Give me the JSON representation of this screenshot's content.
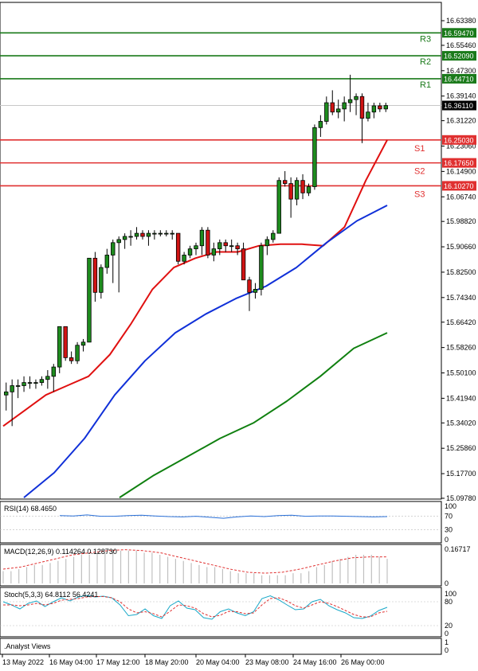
{
  "chart_data": {
    "type": "candlestick",
    "symbol_info": "",
    "x_tick_labels": [
      "13 May 2022",
      "16 May 04:00",
      "17 May 12:00",
      "18 May 20:00",
      "20 May 04:00",
      "23 May 08:00",
      "24 May 16:00",
      "26 May 00:00"
    ],
    "price_ticks": [
      "16.63380",
      "16.55460",
      "16.47300",
      "16.39140",
      "16.31220",
      "16.23060",
      "16.14900",
      "16.06740",
      "15.98820",
      "15.90660",
      "15.82500",
      "15.74340",
      "15.66420",
      "15.58260",
      "15.50100",
      "15.41940",
      "15.34020",
      "15.25860",
      "15.17700",
      "15.09780"
    ],
    "y_range": [
      15.0978,
      16.6338
    ],
    "current_price": "16.36110",
    "levels": [
      {
        "name": "R3",
        "value_label": "16.59470",
        "value": 16.5947,
        "color": "#1a7a1a"
      },
      {
        "name": "R2",
        "value_label": "16.52090",
        "value": 16.5209,
        "color": "#1a7a1a"
      },
      {
        "name": "R1",
        "value_label": "16.44710",
        "value": 16.4471,
        "color": "#1a7a1a"
      },
      {
        "name": "S1",
        "value_label": "16.25030",
        "value": 16.2503,
        "color": "#e03030"
      },
      {
        "name": "S2",
        "value_label": "16.17650",
        "value": 16.1765,
        "color": "#e03030"
      },
      {
        "name": "S3",
        "value_label": "16.10270",
        "value": 16.1027,
        "color": "#e03030"
      }
    ],
    "candles": [
      {
        "o": 15.43,
        "h": 15.47,
        "l": 15.38,
        "c": 15.44
      },
      {
        "o": 15.44,
        "h": 15.48,
        "l": 15.33,
        "c": 15.46
      },
      {
        "o": 15.46,
        "h": 15.48,
        "l": 15.42,
        "c": 15.46
      },
      {
        "o": 15.46,
        "h": 15.49,
        "l": 15.44,
        "c": 15.47
      },
      {
        "o": 15.47,
        "h": 15.49,
        "l": 15.45,
        "c": 15.47
      },
      {
        "o": 15.47,
        "h": 15.48,
        "l": 15.45,
        "c": 15.47
      },
      {
        "o": 15.47,
        "h": 15.49,
        "l": 15.46,
        "c": 15.48
      },
      {
        "o": 15.48,
        "h": 15.51,
        "l": 15.45,
        "c": 15.49
      },
      {
        "o": 15.49,
        "h": 15.53,
        "l": 15.44,
        "c": 15.52
      },
      {
        "o": 15.52,
        "h": 15.65,
        "l": 15.5,
        "c": 15.65
      },
      {
        "o": 15.65,
        "h": 15.65,
        "l": 15.54,
        "c": 15.55
      },
      {
        "o": 15.55,
        "h": 15.57,
        "l": 15.53,
        "c": 15.54
      },
      {
        "o": 15.54,
        "h": 15.6,
        "l": 15.53,
        "c": 15.59
      },
      {
        "o": 15.59,
        "h": 15.61,
        "l": 15.57,
        "c": 15.6
      },
      {
        "o": 15.6,
        "h": 15.87,
        "l": 15.6,
        "c": 15.87
      },
      {
        "o": 15.87,
        "h": 15.89,
        "l": 15.73,
        "c": 15.76
      },
      {
        "o": 15.76,
        "h": 15.85,
        "l": 15.74,
        "c": 15.84
      },
      {
        "o": 15.84,
        "h": 15.9,
        "l": 15.82,
        "c": 15.88
      },
      {
        "o": 15.88,
        "h": 15.93,
        "l": 15.79,
        "c": 15.92
      },
      {
        "o": 15.92,
        "h": 15.94,
        "l": 15.76,
        "c": 15.93
      },
      {
        "o": 15.93,
        "h": 15.95,
        "l": 15.9,
        "c": 15.94
      },
      {
        "o": 15.94,
        "h": 15.96,
        "l": 15.91,
        "c": 15.94
      },
      {
        "o": 15.94,
        "h": 15.97,
        "l": 15.93,
        "c": 15.95
      },
      {
        "o": 15.95,
        "h": 15.96,
        "l": 15.93,
        "c": 15.94
      },
      {
        "o": 15.94,
        "h": 15.96,
        "l": 15.91,
        "c": 15.95
      },
      {
        "o": 15.95,
        "h": 15.96,
        "l": 15.93,
        "c": 15.95
      },
      {
        "o": 15.95,
        "h": 15.96,
        "l": 15.94,
        "c": 15.95
      },
      {
        "o": 15.95,
        "h": 15.96,
        "l": 15.94,
        "c": 15.95
      },
      {
        "o": 15.95,
        "h": 15.96,
        "l": 15.93,
        "c": 15.95
      },
      {
        "o": 15.95,
        "h": 15.95,
        "l": 15.85,
        "c": 15.86
      },
      {
        "o": 15.86,
        "h": 15.89,
        "l": 15.85,
        "c": 15.88
      },
      {
        "o": 15.88,
        "h": 15.91,
        "l": 15.87,
        "c": 15.9
      },
      {
        "o": 15.9,
        "h": 15.92,
        "l": 15.88,
        "c": 15.91
      },
      {
        "o": 15.91,
        "h": 15.97,
        "l": 15.88,
        "c": 15.96
      },
      {
        "o": 15.96,
        "h": 15.97,
        "l": 15.87,
        "c": 15.88
      },
      {
        "o": 15.88,
        "h": 15.92,
        "l": 15.86,
        "c": 15.9
      },
      {
        "o": 15.9,
        "h": 15.93,
        "l": 15.88,
        "c": 15.92
      },
      {
        "o": 15.92,
        "h": 15.93,
        "l": 15.89,
        "c": 15.91
      },
      {
        "o": 15.91,
        "h": 15.93,
        "l": 15.89,
        "c": 15.91
      },
      {
        "o": 15.91,
        "h": 15.92,
        "l": 15.88,
        "c": 15.9
      },
      {
        "o": 15.9,
        "h": 15.92,
        "l": 15.8,
        "c": 15.8
      },
      {
        "o": 15.8,
        "h": 15.81,
        "l": 15.7,
        "c": 15.76
      },
      {
        "o": 15.76,
        "h": 15.79,
        "l": 15.74,
        "c": 15.77
      },
      {
        "o": 15.77,
        "h": 15.92,
        "l": 15.75,
        "c": 15.91
      },
      {
        "o": 15.91,
        "h": 15.94,
        "l": 15.88,
        "c": 15.93
      },
      {
        "o": 15.93,
        "h": 15.96,
        "l": 15.92,
        "c": 15.95
      },
      {
        "o": 15.95,
        "h": 16.13,
        "l": 15.95,
        "c": 16.12
      },
      {
        "o": 16.12,
        "h": 16.15,
        "l": 16.1,
        "c": 16.11
      },
      {
        "o": 16.11,
        "h": 16.13,
        "l": 16.0,
        "c": 16.06
      },
      {
        "o": 16.06,
        "h": 16.13,
        "l": 16.04,
        "c": 16.12
      },
      {
        "o": 16.12,
        "h": 16.14,
        "l": 16.06,
        "c": 16.08
      },
      {
        "o": 16.08,
        "h": 16.11,
        "l": 16.07,
        "c": 16.1
      },
      {
        "o": 16.1,
        "h": 16.3,
        "l": 16.09,
        "c": 16.29
      },
      {
        "o": 16.29,
        "h": 16.33,
        "l": 16.26,
        "c": 16.31
      },
      {
        "o": 16.31,
        "h": 16.39,
        "l": 16.3,
        "c": 16.37
      },
      {
        "o": 16.37,
        "h": 16.41,
        "l": 16.33,
        "c": 16.34
      },
      {
        "o": 16.34,
        "h": 16.38,
        "l": 16.32,
        "c": 16.35
      },
      {
        "o": 16.35,
        "h": 16.39,
        "l": 16.31,
        "c": 16.37
      },
      {
        "o": 16.37,
        "h": 16.46,
        "l": 16.34,
        "c": 16.38
      },
      {
        "o": 16.38,
        "h": 16.4,
        "l": 16.33,
        "c": 16.39
      },
      {
        "o": 16.39,
        "h": 16.4,
        "l": 16.24,
        "c": 16.32
      },
      {
        "o": 16.32,
        "h": 16.37,
        "l": 16.31,
        "c": 16.34
      },
      {
        "o": 16.34,
        "h": 16.37,
        "l": 16.32,
        "c": 16.36
      },
      {
        "o": 16.36,
        "h": 16.37,
        "l": 16.34,
        "c": 16.35
      },
      {
        "o": 16.35,
        "h": 16.37,
        "l": 16.34,
        "c": 16.361
      }
    ],
    "moving_averages": [
      {
        "color": "#e01010",
        "points": [
          15.33,
          15.38,
          15.43,
          15.46,
          15.49,
          15.56,
          15.66,
          15.77,
          15.84,
          15.87,
          15.89,
          15.89,
          15.91,
          15.915,
          15.915,
          15.91,
          15.97,
          16.12,
          16.25
        ]
      },
      {
        "color": "#1030d8",
        "points": [
          15.1,
          15.18,
          15.29,
          15.43,
          15.54,
          15.63,
          15.69,
          15.74,
          15.78,
          15.84,
          15.92,
          15.99,
          16.04
        ]
      },
      {
        "color": "#108010",
        "points": [
          15.1,
          15.17,
          15.23,
          15.29,
          15.34,
          15.41,
          15.49,
          15.58,
          15.63
        ]
      }
    ],
    "rsi": {
      "label": "RSI(14) 68.4650",
      "ticks": [
        "100",
        "70",
        "30",
        "0"
      ],
      "values": [
        72,
        71,
        74,
        70,
        70,
        72,
        73,
        71,
        69,
        68,
        70,
        67,
        64,
        68,
        71,
        69,
        72,
        73,
        70,
        71,
        71,
        70,
        69,
        68,
        69
      ],
      "color": "#2a70d8"
    },
    "macd": {
      "label": "MACD(12,26,9) 0.114264 0.128730",
      "ticks": [
        "0.16717",
        "0"
      ],
      "histogram": [
        0.06,
        0.06,
        0.07,
        0.08,
        0.09,
        0.09,
        0.1,
        0.11,
        0.12,
        0.13,
        0.14,
        0.14,
        0.15,
        0.15,
        0.16,
        0.16,
        0.16,
        0.16,
        0.15,
        0.15,
        0.14,
        0.13,
        0.12,
        0.11,
        0.1,
        0.09,
        0.08,
        0.08,
        0.07,
        0.06,
        0.05,
        0.05,
        0.05,
        0.04,
        0.04,
        0.04,
        0.04,
        0.05,
        0.05,
        0.06,
        0.08,
        0.09,
        0.11,
        0.12,
        0.13,
        0.14,
        0.14,
        0.14,
        0.13,
        0.12
      ],
      "signal": [
        0.07,
        0.08,
        0.1,
        0.12,
        0.14,
        0.15,
        0.16,
        0.165,
        0.16,
        0.15,
        0.13,
        0.11,
        0.09,
        0.07,
        0.055,
        0.05,
        0.055,
        0.07,
        0.09,
        0.11,
        0.125,
        0.13,
        0.13
      ],
      "color": "#c0c0c0",
      "signal_color": "#e03030"
    },
    "stoch": {
      "label": "Stoch(5,3,3) 64.8112 56.4241",
      "ticks": [
        "100",
        "80",
        "20",
        "0"
      ],
      "k": [
        80,
        72,
        62,
        76,
        82,
        68,
        80,
        90,
        82,
        92,
        96,
        92,
        94,
        90,
        72,
        45,
        48,
        62,
        45,
        38,
        70,
        82,
        64,
        60,
        40,
        36,
        55,
        62,
        52,
        45,
        55,
        88,
        95,
        85,
        72,
        60,
        62,
        80,
        86,
        70,
        60,
        52,
        40,
        38,
        44,
        58,
        66
      ],
      "d": [
        72,
        72,
        70,
        72,
        76,
        72,
        76,
        84,
        86,
        88,
        92,
        93,
        93,
        90,
        80,
        62,
        52,
        55,
        50,
        42,
        56,
        72,
        70,
        64,
        50,
        42,
        46,
        56,
        55,
        50,
        52,
        72,
        88,
        90,
        82,
        70,
        64,
        72,
        80,
        76,
        68,
        58,
        48,
        42,
        42,
        52,
        56
      ],
      "k_color": "#18a8c8",
      "d_color": "#e03030"
    },
    "footer_label": ".Analyst Views",
    "footer_ticks": [
      "1",
      "0"
    ]
  }
}
